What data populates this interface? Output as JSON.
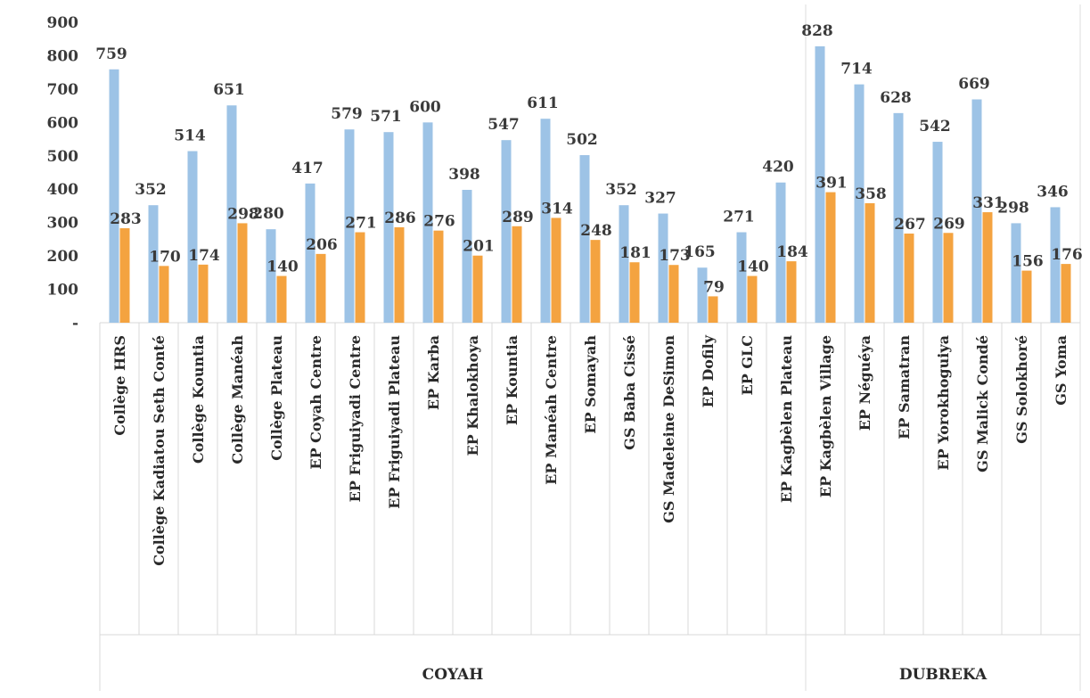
{
  "chart_data": {
    "type": "bar",
    "title": "",
    "ylabel": "",
    "xlabel": "",
    "ylim": [
      0,
      900
    ],
    "yticks": [
      "-",
      "100",
      "200",
      "300",
      "400",
      "500",
      "600",
      "700",
      "800",
      "900"
    ],
    "grid": false,
    "colors": [
      "#9dc3e6",
      "#f4a340"
    ],
    "categories": [
      "Collège HRS",
      "Collège Kadiatou Seth Conté",
      "Collège Kountia",
      "Collège Manéah",
      "Collège Plateau",
      "EP Coyah Centre",
      "EP Friguiyadi Centre",
      "EP Friguiyadi Plateau",
      "EP Karba",
      "EP Khalokhoya",
      "EP Kountia",
      "EP Manéah Centre",
      "EP Somayah",
      "GS Baba Cissé",
      "GS Madeleine DeSimon",
      "EP Dofily",
      "EP GLC",
      "EP Kagbèlen Plateau",
      "EP Kagbèlen Village",
      "EP Néguéya",
      "EP Samatran",
      "EP Yorokhoguiya",
      "GS Malick Condé",
      "GS Solokhoré",
      "GS Yoma"
    ],
    "series": [
      {
        "values": [
          759,
          352,
          514,
          651,
          280,
          417,
          579,
          571,
          600,
          398,
          547,
          611,
          502,
          352,
          327,
          165,
          271,
          420,
          828,
          714,
          628,
          542,
          669,
          298,
          346
        ]
      },
      {
        "values": [
          283,
          170,
          174,
          298,
          140,
          206,
          271,
          286,
          276,
          201,
          289,
          314,
          248,
          181,
          173,
          79,
          140,
          184,
          391,
          358,
          267,
          269,
          331,
          156,
          176
        ]
      }
    ],
    "groups": [
      {
        "label": "COYAH",
        "count": 18
      },
      {
        "label": "DUBREKA",
        "count": 7
      }
    ]
  }
}
